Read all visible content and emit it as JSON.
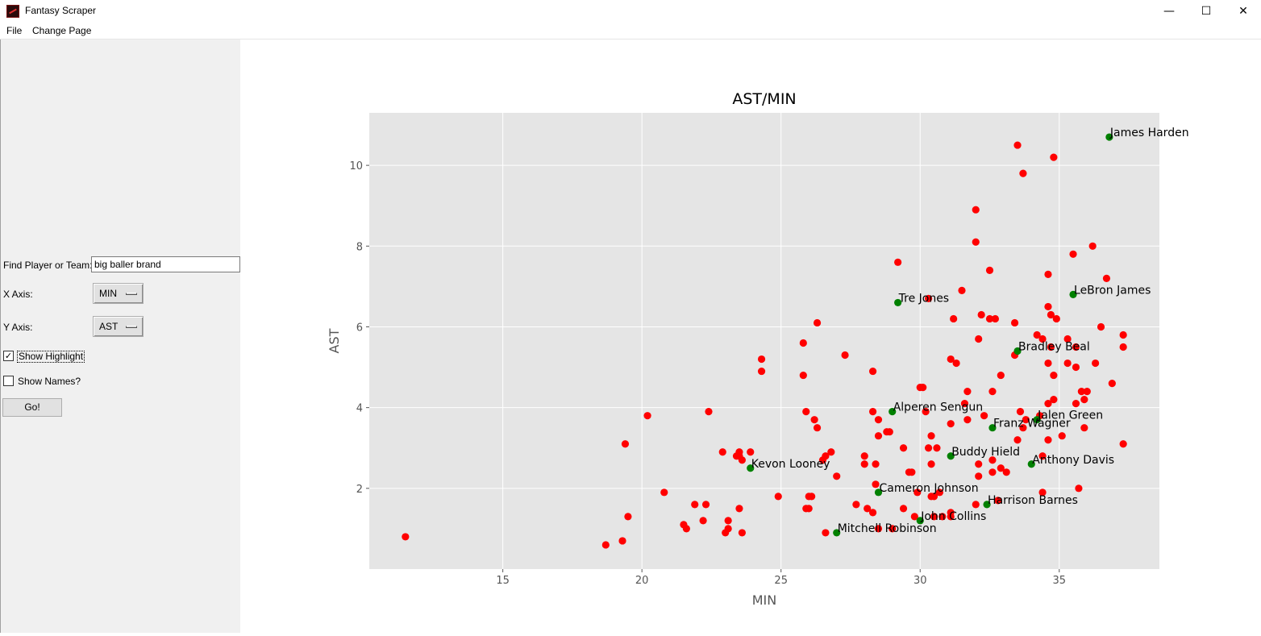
{
  "window": {
    "title": "Fantasy Scraper",
    "minimize_glyph": "—",
    "maximize_glyph": "☐",
    "close_glyph": "✕"
  },
  "menu": {
    "items": [
      "File",
      "Change Page"
    ]
  },
  "sidebar": {
    "find_label": "Find Player or Team:",
    "find_value": "big baller brand",
    "x_axis_label": "X Axis:",
    "x_axis_value": "MIN",
    "y_axis_label": "Y Axis:",
    "y_axis_value": "AST",
    "show_highlight_label": "Show Highlight",
    "show_highlight_checked": true,
    "show_names_label": "Show Names?",
    "show_names_checked": false,
    "go_label": "Go!"
  },
  "colors": {
    "plot_bg": "#e5e5e5",
    "grid": "#ffffff",
    "red_point": "#ff0000",
    "green_point": "#008000"
  },
  "chart_data": {
    "type": "scatter",
    "title": "AST/MIN",
    "xlabel": "MIN",
    "ylabel": "AST",
    "xlim": [
      10.2,
      38.6
    ],
    "ylim": [
      0,
      11.3
    ],
    "xticks": [
      15,
      20,
      25,
      30,
      35
    ],
    "yticks": [
      2,
      4,
      6,
      8,
      10
    ],
    "grid": true,
    "series": [
      {
        "color": "red",
        "points": [
          [
            11.5,
            0.8
          ],
          [
            18.7,
            0.6
          ],
          [
            19.3,
            0.7
          ],
          [
            19.4,
            3.1
          ],
          [
            19.5,
            1.3
          ],
          [
            20.2,
            3.8
          ],
          [
            20.8,
            1.9
          ],
          [
            21.5,
            1.1
          ],
          [
            21.6,
            1.0
          ],
          [
            21.9,
            1.6
          ],
          [
            22.2,
            1.2
          ],
          [
            22.3,
            1.6
          ],
          [
            22.4,
            3.9
          ],
          [
            22.9,
            2.9
          ],
          [
            23.0,
            0.9
          ],
          [
            23.1,
            1.0
          ],
          [
            23.1,
            1.2
          ],
          [
            23.4,
            2.8
          ],
          [
            23.5,
            2.9
          ],
          [
            23.5,
            2.8
          ],
          [
            23.6,
            0.9
          ],
          [
            23.6,
            2.7
          ],
          [
            23.9,
            2.9
          ],
          [
            23.5,
            1.5
          ],
          [
            24.3,
            5.2
          ],
          [
            24.3,
            4.9
          ],
          [
            24.9,
            1.8
          ],
          [
            25.8,
            5.6
          ],
          [
            25.8,
            4.8
          ],
          [
            25.9,
            3.9
          ],
          [
            25.9,
            1.5
          ],
          [
            26.0,
            1.8
          ],
          [
            26.0,
            1.5
          ],
          [
            26.1,
            1.8
          ],
          [
            26.2,
            3.7
          ],
          [
            26.3,
            6.1
          ],
          [
            26.3,
            3.5
          ],
          [
            26.5,
            2.7
          ],
          [
            26.6,
            0.9
          ],
          [
            26.6,
            2.8
          ],
          [
            26.8,
            2.9
          ],
          [
            27.0,
            2.3
          ],
          [
            27.3,
            5.3
          ],
          [
            27.7,
            1.6
          ],
          [
            28.0,
            2.8
          ],
          [
            28.0,
            2.6
          ],
          [
            28.1,
            1.5
          ],
          [
            28.3,
            1.4
          ],
          [
            28.3,
            3.9
          ],
          [
            28.3,
            4.9
          ],
          [
            28.4,
            2.6
          ],
          [
            28.4,
            2.1
          ],
          [
            28.5,
            3.7
          ],
          [
            28.5,
            3.3
          ],
          [
            28.5,
            1.0
          ],
          [
            28.8,
            3.4
          ],
          [
            28.9,
            3.4
          ],
          [
            29.0,
            1.0
          ],
          [
            29.2,
            7.6
          ],
          [
            29.4,
            3.0
          ],
          [
            29.4,
            1.5
          ],
          [
            29.6,
            2.4
          ],
          [
            29.7,
            2.4
          ],
          [
            29.8,
            1.3
          ],
          [
            29.9,
            1.9
          ],
          [
            30.0,
            4.5
          ],
          [
            30.1,
            4.5
          ],
          [
            30.2,
            3.9
          ],
          [
            30.3,
            6.7
          ],
          [
            30.3,
            3.0
          ],
          [
            30.4,
            3.3
          ],
          [
            30.4,
            1.8
          ],
          [
            30.4,
            2.6
          ],
          [
            30.5,
            1.3
          ],
          [
            30.5,
            1.8
          ],
          [
            30.6,
            3.0
          ],
          [
            30.7,
            1.9
          ],
          [
            30.8,
            1.3
          ],
          [
            31.1,
            1.4
          ],
          [
            31.1,
            3.6
          ],
          [
            31.1,
            1.3
          ],
          [
            31.1,
            5.2
          ],
          [
            31.2,
            6.2
          ],
          [
            31.3,
            5.1
          ],
          [
            31.5,
            6.9
          ],
          [
            31.6,
            4.1
          ],
          [
            31.7,
            4.4
          ],
          [
            31.7,
            3.7
          ],
          [
            32.0,
            8.1
          ],
          [
            32.0,
            8.9
          ],
          [
            32.0,
            1.6
          ],
          [
            32.1,
            2.6
          ],
          [
            32.1,
            2.3
          ],
          [
            32.1,
            5.7
          ],
          [
            32.2,
            6.3
          ],
          [
            32.3,
            3.8
          ],
          [
            32.5,
            6.2
          ],
          [
            32.5,
            7.4
          ],
          [
            32.6,
            2.4
          ],
          [
            32.6,
            4.4
          ],
          [
            32.6,
            2.7
          ],
          [
            32.7,
            6.2
          ],
          [
            32.8,
            1.7
          ],
          [
            32.9,
            4.8
          ],
          [
            32.9,
            2.5
          ],
          [
            33.1,
            2.4
          ],
          [
            33.4,
            6.1
          ],
          [
            33.4,
            5.3
          ],
          [
            33.5,
            3.2
          ],
          [
            33.5,
            10.5
          ],
          [
            33.6,
            3.9
          ],
          [
            33.7,
            9.8
          ],
          [
            33.7,
            3.5
          ],
          [
            33.8,
            3.7
          ],
          [
            34.2,
            5.8
          ],
          [
            34.3,
            3.8
          ],
          [
            34.4,
            1.9
          ],
          [
            34.4,
            5.7
          ],
          [
            34.4,
            2.8
          ],
          [
            34.6,
            3.2
          ],
          [
            34.6,
            4.1
          ],
          [
            34.6,
            6.5
          ],
          [
            34.6,
            7.3
          ],
          [
            34.6,
            5.1
          ],
          [
            34.7,
            6.3
          ],
          [
            34.7,
            5.5
          ],
          [
            34.8,
            10.2
          ],
          [
            34.8,
            4.8
          ],
          [
            34.8,
            4.2
          ],
          [
            34.9,
            6.2
          ],
          [
            35.1,
            3.3
          ],
          [
            35.3,
            5.1
          ],
          [
            35.3,
            5.7
          ],
          [
            35.5,
            7.8
          ],
          [
            35.6,
            5.5
          ],
          [
            35.6,
            5.0
          ],
          [
            35.6,
            4.1
          ],
          [
            35.7,
            2.0
          ],
          [
            35.8,
            4.4
          ],
          [
            35.9,
            4.2
          ],
          [
            35.9,
            3.5
          ],
          [
            36.0,
            4.4
          ],
          [
            36.2,
            8.0
          ],
          [
            36.3,
            5.1
          ],
          [
            36.5,
            6.0
          ],
          [
            36.7,
            7.2
          ],
          [
            36.9,
            4.6
          ],
          [
            37.3,
            5.8
          ],
          [
            37.3,
            5.5
          ],
          [
            37.3,
            3.1
          ]
        ]
      },
      {
        "color": "green",
        "points": [
          [
            36.8,
            10.7
          ],
          [
            35.5,
            6.8
          ],
          [
            29.2,
            6.6
          ],
          [
            33.5,
            5.4
          ],
          [
            29.0,
            3.9
          ],
          [
            34.2,
            3.7
          ],
          [
            32.6,
            3.5
          ],
          [
            31.1,
            2.8
          ],
          [
            34.0,
            2.6
          ],
          [
            23.9,
            2.5
          ],
          [
            28.5,
            1.9
          ],
          [
            32.4,
            1.6
          ],
          [
            30.0,
            1.2
          ],
          [
            27.0,
            0.9
          ]
        ]
      }
    ],
    "annotations": [
      {
        "text": "James Harden",
        "x": 36.8,
        "y": 10.7
      },
      {
        "text": "LeBron James",
        "x": 35.5,
        "y": 6.8
      },
      {
        "text": "Tre Jones",
        "x": 29.2,
        "y": 6.6
      },
      {
        "text": "Bradley Beal",
        "x": 33.5,
        "y": 5.4
      },
      {
        "text": "Alperen Sengun",
        "x": 29.0,
        "y": 3.9
      },
      {
        "text": "Jalen Green",
        "x": 34.2,
        "y": 3.7
      },
      {
        "text": "Franz Wagner",
        "x": 32.6,
        "y": 3.5
      },
      {
        "text": "Buddy Hield",
        "x": 31.1,
        "y": 2.8
      },
      {
        "text": "Anthony Davis",
        "x": 34.0,
        "y": 2.6
      },
      {
        "text": "Kevon Looney",
        "x": 23.9,
        "y": 2.5
      },
      {
        "text": "Cameron Johnson",
        "x": 28.5,
        "y": 1.9
      },
      {
        "text": "Harrison Barnes",
        "x": 32.4,
        "y": 1.6
      },
      {
        "text": "John Collins",
        "x": 30.0,
        "y": 1.2
      },
      {
        "text": "Mitchell Robinson",
        "x": 27.0,
        "y": 0.9
      }
    ]
  }
}
